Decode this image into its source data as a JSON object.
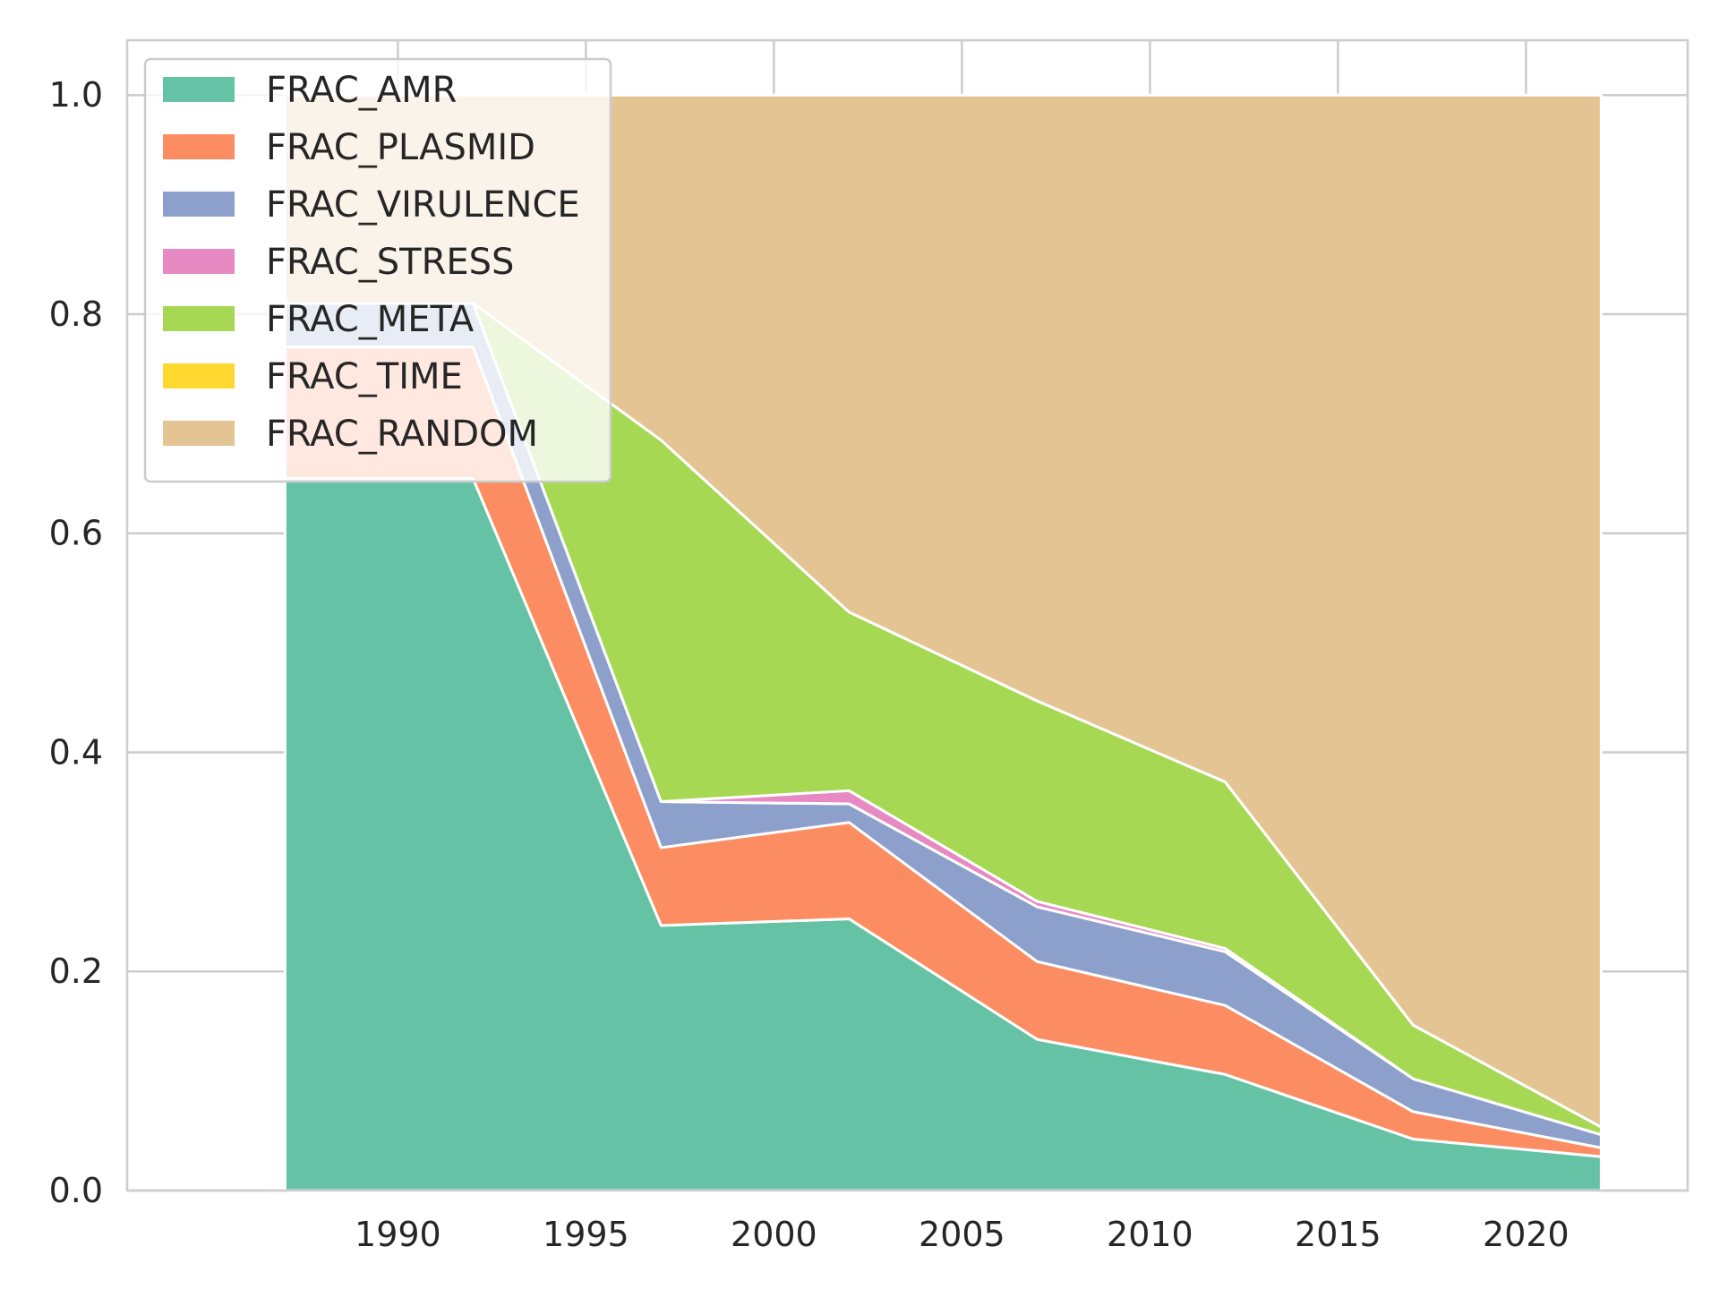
{
  "chart_data": {
    "type": "area",
    "stacked": true,
    "title": "",
    "xlabel": "",
    "ylabel": "",
    "x": [
      1987,
      1992,
      1997,
      2002,
      2007,
      2012,
      2017,
      2022
    ],
    "xlim": [
      1982.8,
      2024.3
    ],
    "ylim": [
      0,
      1.05
    ],
    "xticks": [
      1990,
      1995,
      2000,
      2005,
      2010,
      2015,
      2020
    ],
    "xtick_labels": [
      "1990",
      "1995",
      "2000",
      "2005",
      "2010",
      "2015",
      "2020"
    ],
    "yticks": [
      0,
      0.2,
      0.4,
      0.6,
      0.8,
      1.0
    ],
    "ytick_labels": [
      "0.0",
      "0.2",
      "0.4",
      "0.6",
      "0.8",
      "1.0"
    ],
    "grid": true,
    "legend_position": "top-left",
    "series": [
      {
        "name": "FRAC_AMR",
        "color": "#66c2a5",
        "values": [
          0.65,
          0.65,
          0.242,
          0.248,
          0.138,
          0.106,
          0.047,
          0.031
        ]
      },
      {
        "name": "FRAC_PLASMID",
        "color": "#fc8d62",
        "values": [
          0.12,
          0.12,
          0.071,
          0.088,
          0.071,
          0.063,
          0.025,
          0.008
        ]
      },
      {
        "name": "FRAC_VIRULENCE",
        "color": "#8da0cb",
        "values": [
          0.04,
          0.04,
          0.042,
          0.017,
          0.05,
          0.049,
          0.03,
          0.012
        ]
      },
      {
        "name": "FRAC_STRESS",
        "color": "#e78ac3",
        "values": [
          0.0,
          0.0,
          0.0,
          0.012,
          0.005,
          0.003,
          0.0,
          0.0
        ]
      },
      {
        "name": "FRAC_META",
        "color": "#a6d854",
        "values": [
          0.0,
          0.0,
          0.33,
          0.163,
          0.183,
          0.152,
          0.049,
          0.007
        ]
      },
      {
        "name": "FRAC_TIME",
        "color": "#ffd92f",
        "values": [
          0.0,
          0.0,
          0.0,
          0.0,
          0.0,
          0.0,
          0.0,
          0.0
        ]
      },
      {
        "name": "FRAC_RANDOM",
        "color": "#e5c494",
        "values": [
          0.19,
          0.19,
          0.315,
          0.472,
          0.553,
          0.627,
          0.849,
          0.942
        ]
      }
    ]
  }
}
